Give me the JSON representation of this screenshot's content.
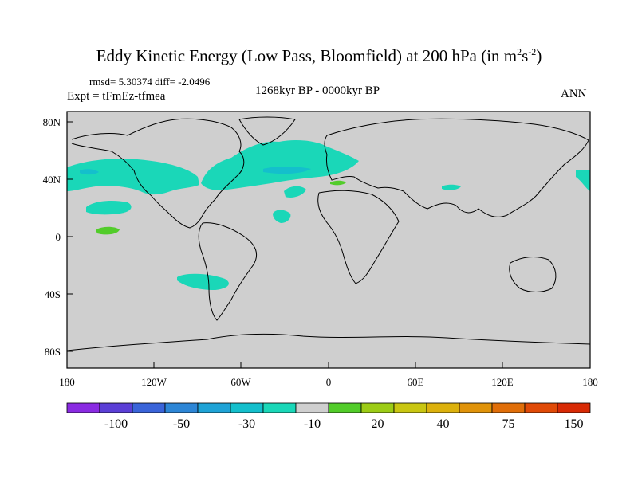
{
  "title": {
    "main": "Eddy Kinetic Energy (Low Pass, Bloomfield) at 200 hPa (in m",
    "sup1": "2",
    "mid": "s",
    "sup2": "-2",
    "end": ")"
  },
  "stats": "rmsd= 5.30374 diff= -2.0496",
  "expt": "Expt = tFmEz-tfmea",
  "period": "1268kyr BP - 0000kyr BP",
  "season": "ANN",
  "lat_labels": [
    "80N",
    "40N",
    "0",
    "40S",
    "80S"
  ],
  "lon_labels": [
    "180",
    "120W",
    "60W",
    "0",
    "60E",
    "120E",
    "180"
  ],
  "colorbar": {
    "colors": [
      "#8a2be2",
      "#5b3fd6",
      "#3a64d9",
      "#2d86d6",
      "#1fa3d6",
      "#14bfcc",
      "#1ad7b8",
      "#cfcfcf",
      "#52cc2a",
      "#9ccc16",
      "#c9c612",
      "#dcb10d",
      "#e0930a",
      "#e06e09",
      "#e04a07",
      "#d82a05"
    ],
    "labels": [
      "-100",
      "-50",
      "-30",
      "-10",
      "20",
      "40",
      "75",
      "150"
    ]
  },
  "colors": {
    "land_ocean": "#cfcfcf",
    "cyan": "#1ad7b8",
    "teal_dark": "#14bfcc",
    "green": "#52cc2a"
  }
}
